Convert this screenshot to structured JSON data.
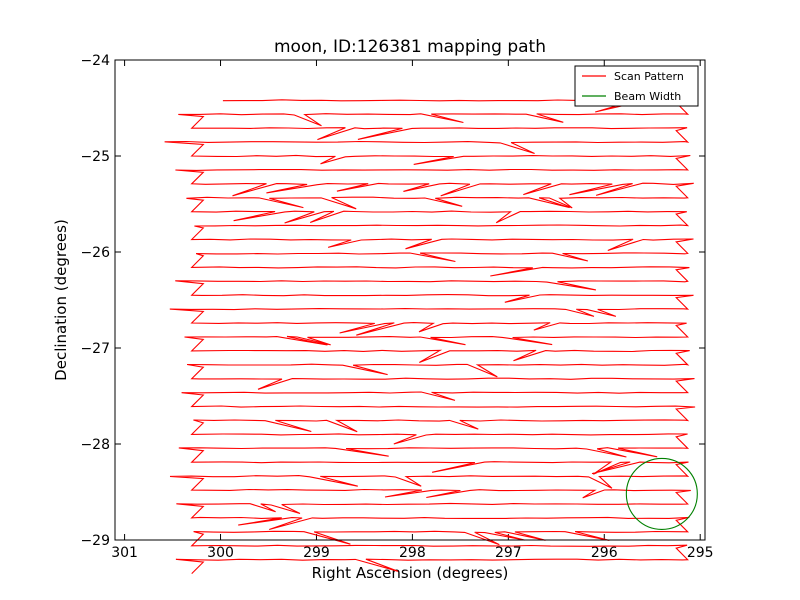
{
  "chart_data": {
    "type": "line",
    "title": "moon, ID:126381 mapping path",
    "xlabel": "Right Ascension (degrees)",
    "ylabel": "Declination (degrees)",
    "xlim": [
      301.1,
      294.95
    ],
    "ylim": [
      -29.0,
      -24.0
    ],
    "x_ticks": [
      301,
      300,
      299,
      298,
      297,
      296,
      295
    ],
    "y_ticks": [
      -24,
      -25,
      -26,
      -27,
      -28,
      -29
    ],
    "grid": false,
    "legend": "top-right",
    "series": [
      {
        "name": "Scan Pattern",
        "color": "#ff0000",
        "style": "raster-scan",
        "ra_left": 300.25,
        "ra_right": 295.15,
        "dec_start": -24.42,
        "dec_step": -0.145,
        "rows": 34
      },
      {
        "name": "Beam Width",
        "color": "#008000",
        "style": "circle",
        "center": [
          295.4,
          -28.52
        ],
        "radius": 0.37
      }
    ]
  }
}
